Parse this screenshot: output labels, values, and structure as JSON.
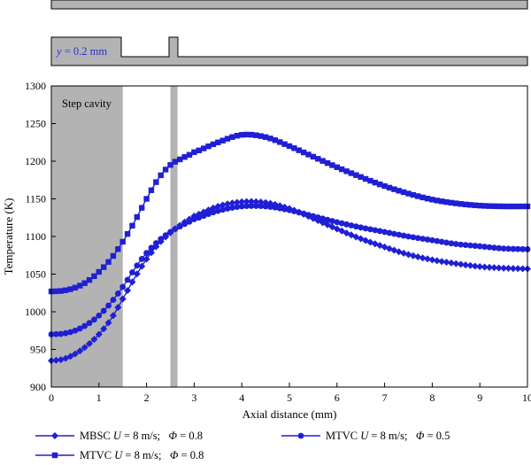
{
  "chart_data": {
    "type": "line",
    "xlabel": "Axial distance (mm)",
    "ylabel": "Temperature (K)",
    "xlim": [
      0,
      10
    ],
    "ylim": [
      900,
      1300
    ],
    "x_ticks": [
      "0",
      "1",
      "2",
      "3",
      "4",
      "5",
      "6",
      "7",
      "8",
      "9",
      "10"
    ],
    "y_ticks": [
      "900",
      "950",
      "1000",
      "1050",
      "1100",
      "1150",
      "1200",
      "1250",
      "1300"
    ],
    "grid": false,
    "legend_position": "bottom",
    "annotations": {
      "cavity_label": "Step cavity",
      "geometry_label": "y = 0.2 mm"
    },
    "shaded_regions": [
      {
        "x_start": 0,
        "x_end": 1.5
      },
      {
        "x_start": 2.5,
        "x_end": 2.65
      }
    ],
    "colors": {
      "series": "#1f1fd6",
      "cavity": "#b3b3b3"
    },
    "series": [
      {
        "name": "MBSC U = 8 m/s; Φ = 0.8",
        "marker": "diamond",
        "x": [
          0,
          0.25,
          0.5,
          0.75,
          1.0,
          1.25,
          1.5,
          1.75,
          2.0,
          2.25,
          2.5,
          2.75,
          3.0,
          3.5,
          4.0,
          4.5,
          5.0,
          5.5,
          6.0,
          6.5,
          7.0,
          7.5,
          8.0,
          8.5,
          9.0,
          9.5,
          10.0
        ],
        "y": [
          935,
          937,
          944,
          955,
          970,
          990,
          1017,
          1045,
          1070,
          1090,
          1105,
          1117,
          1127,
          1140,
          1146,
          1145,
          1137,
          1124,
          1110,
          1097,
          1086,
          1076,
          1069,
          1064,
          1060,
          1058,
          1057
        ]
      },
      {
        "name": "MTVC U = 8 m/s; Φ = 0.8",
        "marker": "square",
        "x": [
          0,
          0.25,
          0.5,
          0.75,
          1.0,
          1.25,
          1.5,
          1.75,
          2.0,
          2.25,
          2.5,
          2.75,
          3.0,
          3.5,
          4.0,
          4.5,
          5.0,
          5.5,
          6.0,
          6.5,
          7.0,
          7.5,
          8.0,
          8.5,
          9.0,
          9.5,
          10.0
        ],
        "y": [
          1027,
          1028,
          1032,
          1040,
          1053,
          1070,
          1093,
          1120,
          1150,
          1177,
          1195,
          1204,
          1212,
          1225,
          1235,
          1232,
          1220,
          1206,
          1192,
          1179,
          1167,
          1157,
          1149,
          1144,
          1141,
          1140,
          1140
        ]
      },
      {
        "name": "MTVC U = 8 m/s; Φ = 0.5",
        "marker": "circle",
        "x": [
          0,
          0.25,
          0.5,
          0.75,
          1.0,
          1.25,
          1.5,
          1.75,
          2.0,
          2.25,
          2.5,
          2.75,
          3.0,
          3.5,
          4.0,
          4.5,
          5.0,
          5.5,
          6.0,
          6.5,
          7.0,
          7.5,
          8.0,
          8.5,
          9.0,
          9.5,
          10.0
        ],
        "y": [
          970,
          971,
          975,
          983,
          995,
          1012,
          1033,
          1057,
          1078,
          1094,
          1106,
          1115,
          1123,
          1134,
          1140,
          1140,
          1135,
          1127,
          1119,
          1112,
          1106,
          1100,
          1095,
          1090,
          1087,
          1084,
          1083
        ]
      }
    ],
    "legend": [
      {
        "prefix": "MBSC ",
        "U": "U",
        "mid": " = 8 m/s;   ",
        "phi": "Φ",
        "suffix": " = 0.8"
      },
      {
        "prefix": "MTVC ",
        "U": "U",
        "mid": " = 8 m/s;   ",
        "phi": "Φ",
        "suffix": " = 0.8"
      },
      {
        "prefix": "MTVC ",
        "U": "U",
        "mid": " = 8 m/s;   ",
        "phi": "Φ",
        "suffix": " = 0.5"
      }
    ]
  }
}
